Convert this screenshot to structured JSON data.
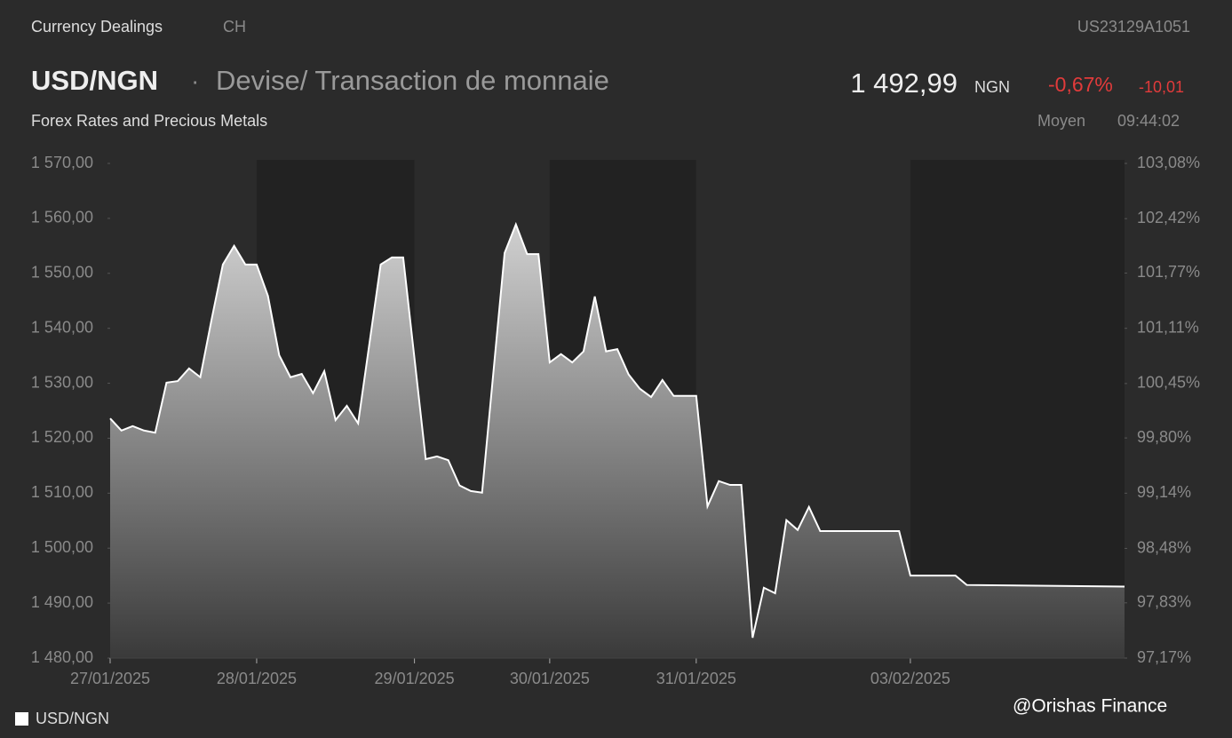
{
  "header": {
    "source": "Currency Dealings",
    "exchange": "CH",
    "isin": "US23129A1051",
    "symbol": "USD/NGN",
    "separator": "·",
    "description": "Devise/ Transaction de monnaie",
    "price": "1 492,99",
    "currency": "NGN",
    "change_pct": "-0,67%",
    "change_abs": "-10,01",
    "category": "Forex Rates and Precious Metals",
    "price_type": "Moyen",
    "time": "09:44:02"
  },
  "watermark": "@Orishas Finance",
  "chart_data": {
    "type": "area",
    "x": [
      0,
      1,
      2,
      3,
      4,
      5,
      6,
      7,
      8,
      9,
      10,
      11,
      12,
      13,
      14,
      15,
      16,
      17,
      18,
      19,
      20,
      21,
      22,
      24,
      25,
      26,
      28,
      29,
      30,
      31,
      32,
      33,
      35,
      36,
      37,
      38,
      39,
      40,
      41,
      42,
      43,
      44,
      45,
      46,
      47,
      48,
      49,
      50,
      52,
      53,
      54,
      55,
      56,
      57,
      58,
      59,
      60,
      61,
      62,
      63,
      70,
      71,
      75,
      76,
      90
    ],
    "series": [
      {
        "name": "USD/NGN",
        "color": "#ffffff",
        "values": [
          1523.6,
          1521.4,
          1522.2,
          1521.4,
          1521.0,
          1530.1,
          1530.4,
          1532.7,
          1531.1,
          1541.6,
          1551.6,
          1555.0,
          1551.6,
          1551.6,
          1545.9,
          1535.1,
          1531.1,
          1531.7,
          1528.2,
          1532.2,
          1523.3,
          1525.9,
          1522.7,
          1551.6,
          1552.9,
          1552.9,
          1516.2,
          1516.7,
          1516.0,
          1511.4,
          1510.4,
          1510.1,
          1553.7,
          1558.9,
          1553.5,
          1553.5,
          1533.8,
          1535.3,
          1533.8,
          1535.8,
          1545.8,
          1535.8,
          1536.2,
          1531.6,
          1529.0,
          1527.5,
          1530.6,
          1527.7,
          1527.7,
          1507.6,
          1512.2,
          1511.5,
          1511.5,
          1483.7,
          1492.8,
          1491.8,
          1505.1,
          1503.3,
          1507.5,
          1503.1,
          1503.1,
          1495.0,
          1495.0,
          1493.3,
          1493.0
        ]
      }
    ],
    "xlim": [
      0,
      90
    ],
    "xticks": [
      {
        "value": 0,
        "label": "27/01/2025"
      },
      {
        "value": 13,
        "label": "28/01/2025"
      },
      {
        "value": 27,
        "label": "29/01/2025"
      },
      {
        "value": 39,
        "label": "30/01/2025"
      },
      {
        "value": 52,
        "label": "31/01/2025"
      },
      {
        "value": 71,
        "label": "03/02/2025"
      }
    ],
    "ylim": [
      1480,
      1570
    ],
    "yticks": [
      {
        "value": 1570,
        "label": "1 570,00"
      },
      {
        "value": 1560,
        "label": "1 560,00"
      },
      {
        "value": 1550,
        "label": "1 550,00"
      },
      {
        "value": 1540,
        "label": "1 540,00"
      },
      {
        "value": 1530,
        "label": "1 530,00"
      },
      {
        "value": 1520,
        "label": "1 520,00"
      },
      {
        "value": 1510,
        "label": "1 510,00"
      },
      {
        "value": 1500,
        "label": "1 500,00"
      },
      {
        "value": 1490,
        "label": "1 490,00"
      },
      {
        "value": 1480,
        "label": "1 480,00"
      }
    ],
    "y2lim": [
      97.17,
      103.08
    ],
    "y2ticks": [
      {
        "value": 103.08,
        "label": "103,08%"
      },
      {
        "value": 102.42,
        "label": "102,42%"
      },
      {
        "value": 101.77,
        "label": "101,77%"
      },
      {
        "value": 101.11,
        "label": "101,11%"
      },
      {
        "value": 100.45,
        "label": "100,45%"
      },
      {
        "value": 99.8,
        "label": "99,80%"
      },
      {
        "value": 99.14,
        "label": "99,14%"
      },
      {
        "value": 98.48,
        "label": "98,48%"
      },
      {
        "value": 97.83,
        "label": "97,83%"
      },
      {
        "value": 97.17,
        "label": "97,17%"
      }
    ]
  }
}
